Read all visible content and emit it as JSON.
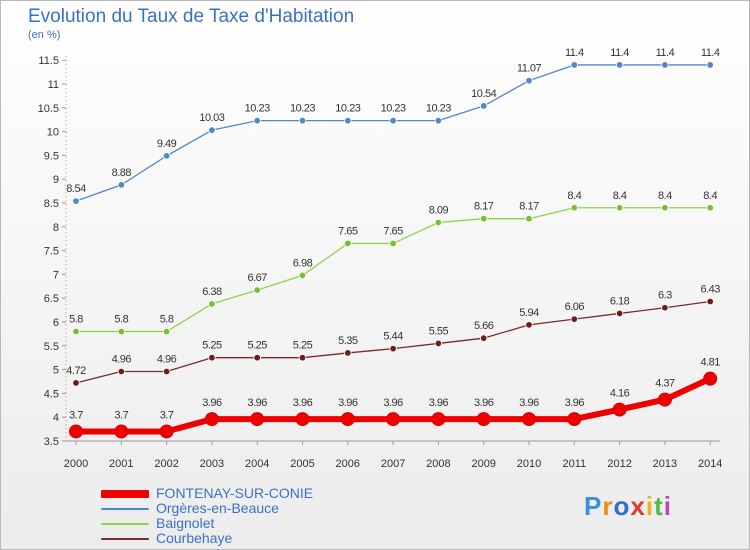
{
  "chart_data": {
    "type": "line",
    "title": "Evolution du Taux de Taxe d'Habitation",
    "unit_label": "(en %)",
    "x": [
      "2000",
      "2001",
      "2002",
      "2003",
      "2004",
      "2005",
      "2006",
      "2007",
      "2008",
      "2009",
      "2010",
      "2011",
      "2012",
      "2013",
      "2014"
    ],
    "yticks": [
      "3.5",
      "4",
      "4.5",
      "5",
      "5.5",
      "6",
      "6.5",
      "7",
      "7.5",
      "8",
      "8.5",
      "9",
      "9.5",
      "10",
      "10.5",
      "11",
      "11.5"
    ],
    "ylim": [
      3.5,
      11.5
    ],
    "grid": false,
    "legend_position": "bottom-left",
    "series": [
      {
        "name": "Orgères-en-Beauce",
        "color": "#4f87c9",
        "marker": "#4f87c9",
        "line_width": 1.3,
        "values": [
          8.54,
          8.88,
          9.49,
          10.03,
          10.23,
          10.23,
          10.23,
          10.23,
          10.23,
          10.54,
          11.07,
          11.4,
          11.4,
          11.4,
          11.4
        ],
        "labels": [
          "8.54",
          "8.88",
          "9.49",
          "10.03",
          "10.23",
          "10.23",
          "10.23",
          "10.23",
          "10.23",
          "10.54",
          "11.07",
          "11.4",
          "11.4",
          "11.4",
          "11.4"
        ]
      },
      {
        "name": "Baignolet",
        "color": "#8fd14f",
        "marker": "#74c032",
        "line_width": 1.3,
        "values": [
          5.8,
          5.8,
          5.8,
          6.38,
          6.67,
          6.98,
          7.65,
          7.65,
          8.09,
          8.17,
          8.17,
          8.4,
          8.4,
          8.4,
          8.4
        ],
        "labels": [
          "5.8",
          "5.8",
          "5.8",
          "6.38",
          "6.67",
          "6.98",
          "7.65",
          "7.65",
          "8.09",
          "8.17",
          "8.17",
          "8.4",
          "8.4",
          "8.4",
          "8.4"
        ]
      },
      {
        "name": "Courbehaye",
        "color": "#7b2a2a",
        "marker": "#6e1c1c",
        "line_width": 1.3,
        "values": [
          4.72,
          4.96,
          4.96,
          5.25,
          5.25,
          5.25,
          5.35,
          5.44,
          5.55,
          5.66,
          5.94,
          6.06,
          6.18,
          6.3,
          6.43
        ],
        "labels": [
          "4.72",
          "4.96",
          "4.96",
          "5.25",
          "5.25",
          "5.25",
          "5.35",
          "5.44",
          "5.55",
          "5.66",
          "5.94",
          "6.06",
          "6.18",
          "6.3",
          "6.43"
        ]
      },
      {
        "name": "FONTENAY-SUR-CONIE",
        "color": "#ee0000",
        "marker": "#ee0000",
        "line_width": 6,
        "values": [
          3.7,
          3.7,
          3.7,
          3.96,
          3.96,
          3.96,
          3.96,
          3.96,
          3.96,
          3.96,
          3.96,
          3.96,
          4.16,
          4.37,
          4.81
        ],
        "labels": [
          "3.7",
          "3.7",
          "3.7",
          "3.96",
          "3.96",
          "3.96",
          "3.96",
          "3.96",
          "3.96",
          "3.96",
          "3.96",
          "3.96",
          "4.16",
          "4.37",
          "4.81"
        ]
      }
    ],
    "legend_order": [
      3,
      0,
      1,
      2
    ]
  },
  "branding": {
    "logo_letters": [
      "P",
      "r",
      "o",
      "x",
      "i",
      "t",
      "i"
    ],
    "logo_colors": [
      "#3a8fd8",
      "#f08a1c",
      "#2b6fd0",
      "#e23a2a",
      "#f2b21a",
      "#53b848",
      "#c044b5"
    ]
  }
}
